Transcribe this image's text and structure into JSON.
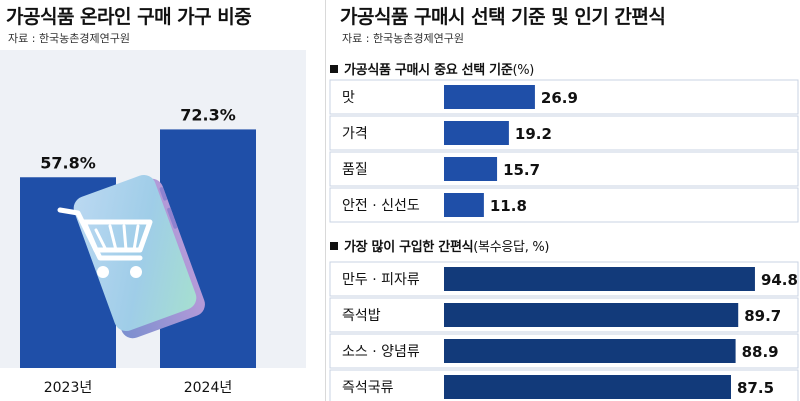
{
  "left": {
    "title": "가공식품 온라인 구매 가구 비중",
    "source": "자료 : 한국농촌경제연구원"
  },
  "right": {
    "title": "가공식품 구매시 선택 기준 및 인기 간편식",
    "source": "자료 : 한국농촌경제연구원",
    "section1_title": "가공식품 구매시 중요 선택 기준",
    "section1_unit": "(%)",
    "section2_title": "가장 많이 구입한 간편식",
    "section2_unit": "(복수응답, %)"
  },
  "colors": {
    "bar_blue": "#1f4fa8",
    "bar_navy": "#123a7a",
    "row_border": "#c9d3e3",
    "panel_bg": "#eef1f6"
  },
  "icons": [
    "smartphone-icon",
    "shopping-cart-icon"
  ],
  "chart_data": [
    {
      "type": "bar",
      "title": "가공식품 온라인 구매 가구 비중",
      "categories": [
        "2023년",
        "2024년"
      ],
      "values": [
        57.8,
        72.3
      ],
      "value_labels": [
        "57.8%",
        "72.3%"
      ],
      "ylim": [
        0,
        100
      ]
    },
    {
      "type": "bar",
      "orientation": "horizontal",
      "title": "가공식품 구매시 중요 선택 기준",
      "categories": [
        "맛",
        "가격",
        "품질",
        "안전 · 신선도"
      ],
      "values": [
        26.9,
        19.2,
        15.7,
        11.8
      ],
      "xlim": [
        0,
        30
      ]
    },
    {
      "type": "bar",
      "orientation": "horizontal",
      "title": "가장 많이 구입한 간편식",
      "categories": [
        "만두 · 피자류",
        "즉석밥",
        "소스 · 양념류",
        "즉석국류"
      ],
      "values": [
        94.8,
        89.7,
        88.9,
        87.5
      ],
      "xlim": [
        0,
        100
      ]
    }
  ]
}
